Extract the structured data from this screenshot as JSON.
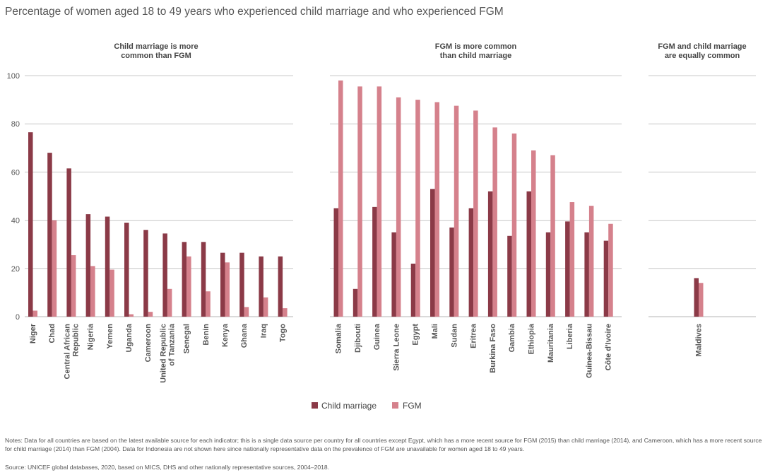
{
  "title": "Percentage of women aged 18 to 49 years who experienced child marriage and who experienced FGM",
  "chart_data": {
    "type": "bar",
    "ylim": [
      0,
      100
    ],
    "yticks": [
      "0",
      "20",
      "40",
      "60",
      "80",
      "100"
    ],
    "grid": true,
    "legend_position": "bottom-center",
    "series_names": [
      "Child marriage",
      "FGM"
    ],
    "colors": {
      "child_marriage": "#8b3a47",
      "fgm": "#d5818c"
    },
    "panels": [
      {
        "heading": [
          "Child marriage is more",
          "common than FGM"
        ],
        "categories": [
          [
            "Niger"
          ],
          [
            "Chad"
          ],
          [
            "Central African",
            "Republic"
          ],
          [
            "Nigeria"
          ],
          [
            "Yemen"
          ],
          [
            "Uganda"
          ],
          [
            "Cameroon"
          ],
          [
            "United Republic",
            "of Tanzania"
          ],
          [
            "Senegal"
          ],
          [
            "Benin"
          ],
          [
            "Kenya"
          ],
          [
            "Ghana"
          ],
          [
            "Iraq"
          ],
          [
            "Togo"
          ]
        ],
        "child_marriage": [
          76.5,
          68,
          61.5,
          42.5,
          41.5,
          39,
          36,
          34.5,
          31,
          31,
          26.5,
          26.5,
          25,
          25
        ],
        "fgm": [
          2.5,
          40,
          25.5,
          21,
          19.5,
          1,
          2,
          11.5,
          25,
          10.5,
          22.5,
          4,
          8,
          3.5
        ]
      },
      {
        "heading": [
          "FGM is more common",
          "than child marriage"
        ],
        "categories": [
          [
            "Somalia"
          ],
          [
            "Djibouti"
          ],
          [
            "Guinea"
          ],
          [
            "Sierra Leone"
          ],
          [
            "Egypt"
          ],
          [
            "Mali"
          ],
          [
            "Sudan"
          ],
          [
            "Eritrea"
          ],
          [
            "Burkina Faso"
          ],
          [
            "Gambia"
          ],
          [
            "Ethiopia"
          ],
          [
            "Mauritania"
          ],
          [
            "Liberia"
          ],
          [
            "Guinea-Bissau"
          ],
          [
            "Côte d'Ivoire"
          ]
        ],
        "child_marriage": [
          45,
          11.5,
          45.5,
          35,
          22,
          53,
          37,
          45,
          52,
          33.5,
          52,
          35,
          39.5,
          35,
          31.5
        ],
        "fgm": [
          98,
          95.5,
          95.5,
          91,
          90,
          89,
          87.5,
          85.5,
          78.5,
          76,
          69,
          67,
          47.5,
          46,
          38.5
        ]
      },
      {
        "heading": [
          "FGM and child marriage",
          "are equally common"
        ],
        "categories": [
          [
            "Maldives"
          ]
        ],
        "child_marriage": [
          16
        ],
        "fgm": [
          14
        ]
      }
    ]
  },
  "notes": "Notes: Data for all countries are based on the latest available source for each indicator; this is a single data source per country for all countries except Egypt, which has a more recent source for FGM (2015) than child marriage (2014), and Cameroon, which has a more recent source for child marriage (2014) than FGM (2004). Data for Indonesia are not shown here since nationally representative data on the prevalence of FGM are unavailable for women aged 18 to 49 years.",
  "source": "Source: UNICEF global databases, 2020, based on MICS, DHS and other nationally representative sources, 2004–2018."
}
